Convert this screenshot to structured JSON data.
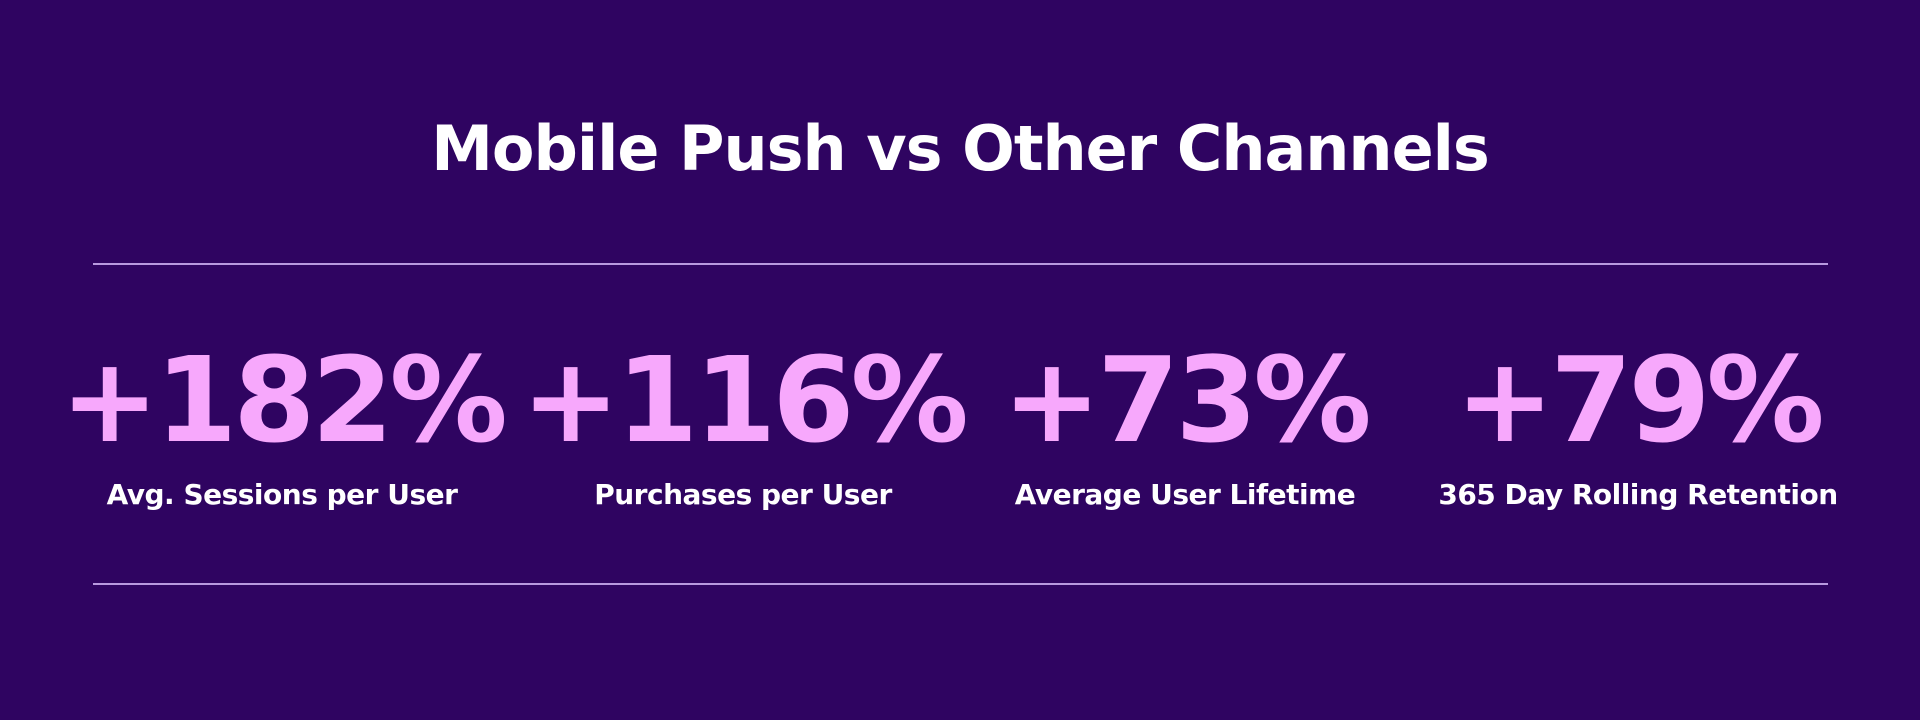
{
  "header": {
    "title": "Mobile Push vs Other Channels"
  },
  "stats": [
    {
      "value": "+182%",
      "label": "Avg. Sessions per User"
    },
    {
      "value": "+116%",
      "label": "Purchases per User"
    },
    {
      "value": "+73%",
      "label": "Average User Lifetime"
    },
    {
      "value": "+79%",
      "label": "365 Day Rolling Retention"
    }
  ]
}
